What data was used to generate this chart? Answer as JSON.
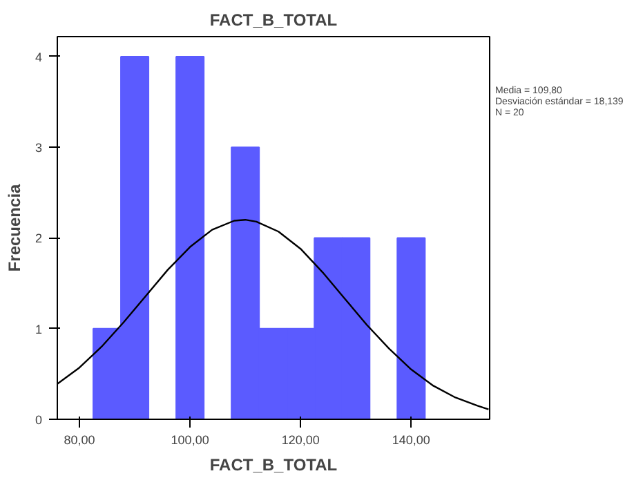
{
  "chart_data": {
    "type": "histogram",
    "title": "FACT_B_TOTAL",
    "xlabel": "FACT_B_TOTAL",
    "ylabel": "Frecuencia",
    "bins": [
      82.5,
      87.5,
      92.5,
      97.5,
      102.5,
      107.5,
      112.5,
      117.5,
      122.5,
      127.5,
      132.5,
      137.5,
      142.5
    ],
    "values": [
      1,
      4,
      0,
      4,
      0,
      3,
      1,
      1,
      2,
      2,
      0,
      2
    ],
    "color": "#5b5bff",
    "series": [
      {
        "type": "line",
        "color": "#000000",
        "x": [
          76,
          80,
          84,
          88,
          92,
          96,
          100,
          104,
          108,
          110,
          112,
          116,
          120,
          124,
          128,
          132,
          136,
          140,
          144,
          148,
          152,
          154
        ],
        "values": [
          0.39,
          0.57,
          0.8,
          1.07,
          1.36,
          1.65,
          1.9,
          2.09,
          2.19,
          2.2,
          2.18,
          2.07,
          1.88,
          1.62,
          1.33,
          1.04,
          0.78,
          0.55,
          0.37,
          0.24,
          0.15,
          0.11
        ]
      }
    ],
    "xlim": [
      76,
      154.2
    ],
    "ylim": [
      0,
      4.22
    ],
    "xticks": [
      {
        "value": 80,
        "label": "80,00"
      },
      {
        "value": 100,
        "label": "100,00"
      },
      {
        "value": 120,
        "label": "120,00"
      },
      {
        "value": 140,
        "label": "140,00"
      }
    ],
    "yticks": [
      0,
      1,
      2,
      3,
      4
    ],
    "grid": false,
    "annotations": [
      "Media = 109,80",
      "Desviación estándar = 18,139",
      "N = 20"
    ]
  }
}
